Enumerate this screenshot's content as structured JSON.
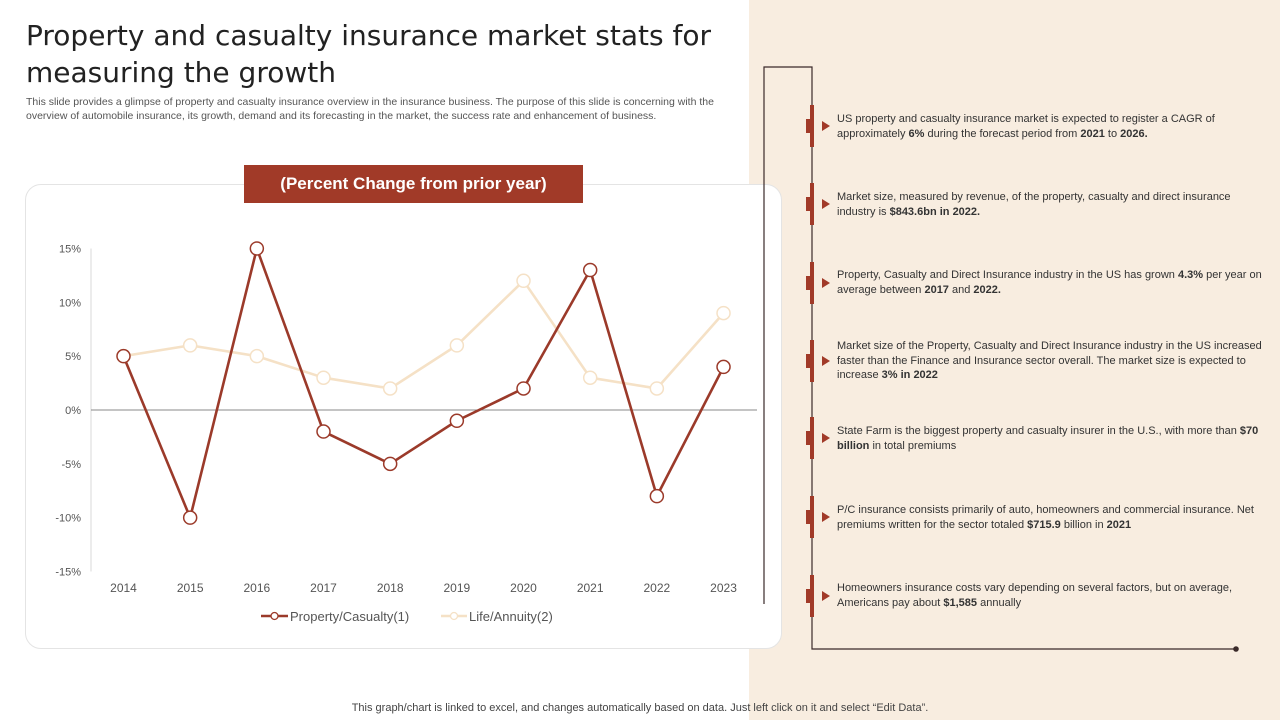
{
  "slide": {
    "title": "Property and casualty insurance market stats for measuring the growth",
    "subtitle": "This slide provides a glimpse of property and casualty insurance overview in the insurance business. The purpose of this slide is concerning with the overview of automobile insurance, its growth, demand and its forecasting in the market, the success rate and enhancement of business.",
    "chart_header": "(Percent Change from prior year)",
    "footer": "This graph/chart is linked to excel,  and changes automatically based on data. Just left click on it and select “Edit Data”."
  },
  "colors": {
    "accent": "#a13a28",
    "series1": "#9b3a2a",
    "series2": "#f5e1c6",
    "panel_bg": "#f8ede0"
  },
  "chart_data": {
    "type": "line",
    "title": "(Percent Change from prior year)",
    "xlabel": "",
    "ylabel": "",
    "categories": [
      "2014",
      "2015",
      "2016",
      "2017",
      "2018",
      "2019",
      "2020",
      "2021",
      "2022",
      "2023"
    ],
    "series": [
      {
        "name": "Property/Casualty(1)",
        "values": [
          5,
          -10,
          15,
          -2,
          -5,
          -1,
          2,
          13,
          -8,
          4
        ]
      },
      {
        "name": "Life/Annuity(2)",
        "values": [
          5,
          6,
          5,
          3,
          2,
          6,
          12,
          3,
          2,
          9
        ]
      }
    ],
    "ylim": [
      -15,
      15
    ],
    "yticks": [
      15,
      10,
      5,
      0,
      -5,
      -10,
      -15
    ],
    "ytick_labels": [
      "15%",
      "10%",
      "5%",
      "0%",
      "-5%",
      "-10%",
      "-15%"
    ],
    "grid": false,
    "legend": "bottom"
  },
  "notes": [
    {
      "html": "US property and casualty insurance market is expected to register a CAGR of approximately <b>6%</b>  during the forecast period from <b>2021</b> to <b>2026.</b>"
    },
    {
      "html": "Market size, measured by revenue, of the property, casualty and direct insurance industry is <b>$843.6bn</b> <b>in 2022.</b>"
    },
    {
      "html": "Property, Casualty and Direct Insurance industry in the US has grown <b>4.3%</b>  per year on average between <b>2017</b> and <b>2022.</b>"
    },
    {
      "html": "Market size of the Property, Casualty and Direct Insurance industry in the US increased faster than the Finance and Insurance sector overall. The market size is expected to increase <b>3%</b> <b>in 2022</b>"
    },
    {
      "html": "State Farm is the biggest property and casualty insurer in the U.S., with more than <b>$70 billion</b>  in total premiums"
    },
    {
      "html": "P/C insurance consists primarily of auto, homeowners and commercial insurance. Net premiums written for the sector totaled <b>$715.9</b> billion in <b>2021</b>"
    },
    {
      "html": "Homeowners insurance costs vary depending on several factors, but on average, Americans pay about <b>$1,585</b> annually"
    }
  ]
}
